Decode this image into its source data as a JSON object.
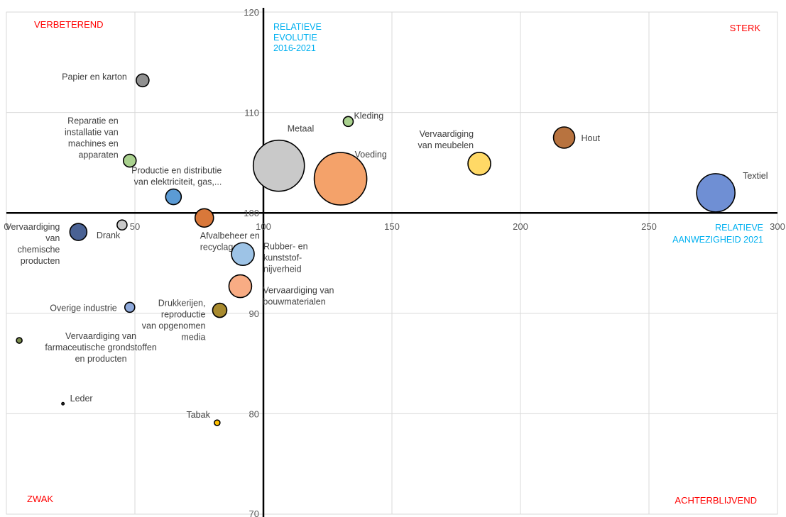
{
  "chart_data": {
    "type": "bubble",
    "xlim": [
      0,
      300
    ],
    "ylim": [
      70,
      120
    ],
    "x_ticks": [
      0,
      50,
      100,
      150,
      200,
      250,
      300
    ],
    "y_ticks": [
      80,
      90,
      100,
      110,
      120
    ],
    "x_axis_crossing": 100,
    "y_axis_crossing": 100,
    "grid": true,
    "xlabel_lines": [
      "RELATIEVE",
      "AANWEZIGHEID 2021"
    ],
    "ylabel_lines": [
      "RELATIEVE",
      "EVOLUTIE",
      "2016-2021"
    ],
    "axis_title_color": "#00b0f0",
    "quadrant_color": "#ff0000",
    "quadrants": {
      "top_left": "VERBETEREND",
      "top_right": "STERK",
      "bottom_left": "ZWAK",
      "bottom_right": "ACHTERBLIJVEND"
    },
    "points": [
      {
        "x": 106,
        "y": 104.7,
        "size": 36,
        "color": "#c9c9c9",
        "label_lines": [
          "Metaal"
        ]
      },
      {
        "x": 130,
        "y": 103.4,
        "size": 37,
        "color": "#f4a26a",
        "label_lines": [
          "Voeding"
        ]
      },
      {
        "x": 133,
        "y": 109.1,
        "size": 7,
        "color": "#a9d18e",
        "label_lines": [
          "Kleding"
        ]
      },
      {
        "x": 184,
        "y": 104.9,
        "size": 16,
        "color": "#ffd966",
        "label_lines": [
          "Vervaardiging",
          "van meubelen"
        ]
      },
      {
        "x": 217,
        "y": 107.5,
        "size": 15,
        "color": "#b8733f",
        "label_lines": [
          "Hout"
        ]
      },
      {
        "x": 276,
        "y": 102,
        "size": 27,
        "color": "#6f8fd4",
        "label_lines": [
          "Textiel"
        ]
      },
      {
        "x": 53,
        "y": 113.2,
        "size": 9,
        "color": "#909090",
        "label_lines": [
          "Papier en karton"
        ]
      },
      {
        "x": 48,
        "y": 105.2,
        "size": 9,
        "color": "#a9d18e",
        "label_lines": [
          "Reparatie en",
          "installatie van",
          "machines en",
          "apparaten"
        ]
      },
      {
        "x": 65,
        "y": 101.6,
        "size": 11,
        "color": "#5b9bd5",
        "label_lines": [
          "Productie en distributie",
          "van elektriciteit, gas,..."
        ]
      },
      {
        "x": 77,
        "y": 99.5,
        "size": 13,
        "color": "#d9783a",
        "label_lines": [
          "Afvalbeheer en",
          "recyclage"
        ]
      },
      {
        "x": 45,
        "y": 98.8,
        "size": 7,
        "color": "#c9c9c9",
        "label_lines": [
          "Drank"
        ]
      },
      {
        "x": 28,
        "y": 98.1,
        "size": 12,
        "color": "#4a6294",
        "label_lines": [
          "Vervaardiging",
          "van",
          "chemische",
          "producten"
        ]
      },
      {
        "x": 92,
        "y": 95.9,
        "size": 16,
        "color": "#9dc3e6",
        "label_lines": [
          "Rubber- en",
          "kunststof-",
          "nijverheid"
        ]
      },
      {
        "x": 91,
        "y": 92.7,
        "size": 16,
        "color": "#f8ac84",
        "label_lines": [
          "Vervaardiging van",
          "bouwmaterialen"
        ]
      },
      {
        "x": 83,
        "y": 90.3,
        "size": 10,
        "color": "#a88a2e",
        "label_lines": [
          "Drukkerijen,",
          "reproductie",
          "van opgenomen",
          "media"
        ]
      },
      {
        "x": 48,
        "y": 90.6,
        "size": 7,
        "color": "#8faadc",
        "label_lines": [
          "Overige industrie"
        ]
      },
      {
        "x": 5,
        "y": 87.3,
        "size": 4,
        "color": "#7a8b4c",
        "label_lines": [
          "Vervaardiging van",
          "farmaceutische grondstoffen",
          "en producten"
        ]
      },
      {
        "x": 22,
        "y": 81,
        "size": 2,
        "color": "#222222",
        "label_lines": [
          "Leder"
        ]
      },
      {
        "x": 82,
        "y": 79.1,
        "size": 4,
        "color": "#ffc000",
        "label_lines": [
          "Tabak"
        ]
      }
    ]
  }
}
